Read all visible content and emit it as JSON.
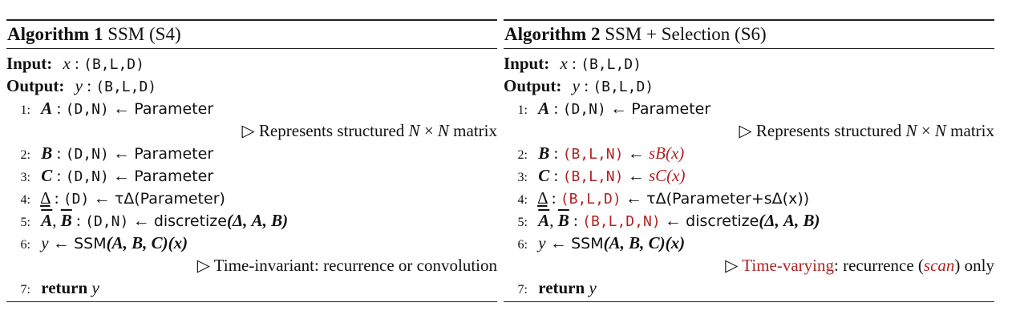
{
  "alg1": {
    "title_label": "Algorithm 1",
    "title_text": "SSM (S4)",
    "input_label": "Input:",
    "input_var": "x",
    "input_shape": "(B,L,D)",
    "output_label": "Output:",
    "output_var": "y",
    "output_shape": "(B,L,D)",
    "lines": {
      "l1": {
        "num": "1:",
        "lhs": "A",
        "shape": "(D,N)",
        "arrow": "←",
        "rhs": "Parameter"
      },
      "c1": {
        "pre": "Represents structured",
        "n": "N",
        "times": "×",
        "n2": "N",
        "post": "matrix"
      },
      "l2": {
        "num": "2:",
        "lhs": "B",
        "shape": "(D,N)",
        "arrow": "←",
        "rhs": "Parameter"
      },
      "l3": {
        "num": "3:",
        "lhs": "C",
        "shape": "(D,N)",
        "arrow": "←",
        "rhs": "Parameter"
      },
      "l4": {
        "num": "4:",
        "lhs": "Δ",
        "shape": "(D)",
        "arrow": "←",
        "rhs": "τΔ(Parameter)"
      },
      "l5": {
        "num": "5:",
        "lhs1": "A",
        "lhs2": "B",
        "shape": "(D,N)",
        "arrow": "←",
        "fn": "discretize",
        "args": "(Δ, A, B)"
      },
      "l6": {
        "num": "6:",
        "var": "y",
        "arrow": "←",
        "fn": "SSM",
        "args": "(A, B, C)(x)"
      },
      "c6": {
        "text": "Time-invariant: recurrence or convolution"
      },
      "l7": {
        "num": "7:",
        "kw": "return",
        "var": "y"
      }
    }
  },
  "alg2": {
    "title_label": "Algorithm 2",
    "title_text": "SSM + Selection (S6)",
    "input_label": "Input:",
    "input_var": "x",
    "input_shape": "(B,L,D)",
    "output_label": "Output:",
    "output_var": "y",
    "output_shape": "(B,L,D)",
    "lines": {
      "l1": {
        "num": "1:",
        "lhs": "A",
        "shape": "(D,N)",
        "arrow": "←",
        "rhs": "Parameter"
      },
      "c1": {
        "pre": "Represents structured",
        "n": "N",
        "times": "×",
        "n2": "N",
        "post": "matrix"
      },
      "l2": {
        "num": "2:",
        "lhs": "B",
        "shape": "(B,L,N)",
        "arrow": "←",
        "rhs": "sB(x)"
      },
      "l3": {
        "num": "3:",
        "lhs": "C",
        "shape": "(B,L,N)",
        "arrow": "←",
        "rhs": "sC(x)"
      },
      "l4": {
        "num": "4:",
        "lhs": "Δ",
        "shape": "(B,L,D)",
        "arrow": "←",
        "rhs": "τΔ(Parameter+sΔ(x))"
      },
      "l5": {
        "num": "5:",
        "lhs1": "A",
        "lhs2": "B",
        "shape": "(B,L,D,N)",
        "arrow": "←",
        "fn": "discretize",
        "args": "(Δ, A, B)"
      },
      "l6": {
        "num": "6:",
        "var": "y",
        "arrow": "←",
        "fn": "SSM",
        "args": "(A, B, C)(x)"
      },
      "c6": {
        "red": "Time-varying",
        "mid": ": recurrence (",
        "scan": "scan",
        "post": ") only"
      },
      "l7": {
        "num": "7:",
        "kw": "return",
        "var": "y"
      }
    }
  },
  "colors": {
    "accent_red": "#b22222",
    "text": "#111111"
  }
}
